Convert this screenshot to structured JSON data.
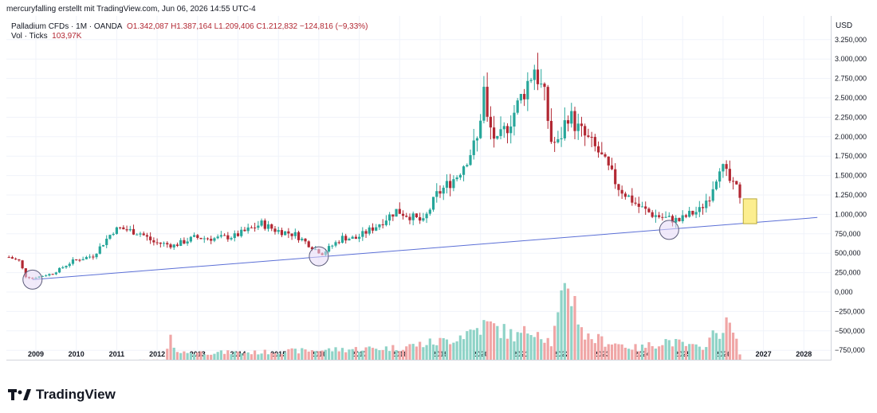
{
  "header": {
    "attribution": "mercuryfalling erstellt mit TradingView.com, Jun 06, 2026 14:55 UTC-4"
  },
  "legend": {
    "symbol": "Palladium CFDs · 1M · OANDA",
    "ohlc": "O1.342,087  H1.387,164  L1.209,406  C1.212,832  −124,816 (−9,33%)",
    "volume_label": "Vol · Ticks",
    "volume_value": "103,97K"
  },
  "currency": "USD",
  "brand": "TradingView",
  "colors": {
    "up": "#26a69a",
    "down": "#b22833",
    "vol_up": "#8fd3c7",
    "vol_down": "#f0a6a6",
    "trendline": "#5b6fd6",
    "circle_fill": "#e6d9f5",
    "circle_stroke": "#5c5c7a",
    "box_fill": "#fcee8f",
    "box_stroke": "#b9a93a"
  },
  "chart_data": {
    "type": "candlestick",
    "interval": "monthly",
    "x_start": "2008-05",
    "y_ticks": [
      3250000,
      3000000,
      2750000,
      2500000,
      2250000,
      2000000,
      1750000,
      1500000,
      1250000,
      1000000,
      750000,
      500000,
      250000,
      0,
      -250000,
      -500000,
      -750000
    ],
    "y_tick_labels": [
      "3.250,000",
      "3.000,000",
      "2.750,000",
      "2.500,000",
      "2.250,000",
      "2.000,000",
      "1.750,000",
      "1.500,000",
      "1.250,000",
      "1.000,000",
      "750,000",
      "500,000",
      "250,000",
      "0,000",
      "−250,000",
      "−500,000",
      "−750,000"
    ],
    "x_ticks": [
      "2009",
      "2010",
      "2011",
      "2012",
      "2013",
      "2014",
      "2015",
      "2016",
      "2017",
      "2018",
      "2019",
      "2020",
      "2021",
      "2022",
      "2023",
      "2024",
      "2025",
      "2026",
      "2027",
      "2028"
    ],
    "close_anchors": [
      [
        "2008-05",
        450000
      ],
      [
        "2008-08",
        400000
      ],
      [
        "2008-10",
        200000
      ],
      [
        "2008-12",
        180000
      ],
      [
        "2009-06",
        240000
      ],
      [
        "2009-12",
        400000
      ],
      [
        "2010-06",
        470000
      ],
      [
        "2010-12",
        790000
      ],
      [
        "2011-02",
        820000
      ],
      [
        "2011-08",
        760000
      ],
      [
        "2011-12",
        640000
      ],
      [
        "2012-06",
        600000
      ],
      [
        "2012-12",
        700000
      ],
      [
        "2013-06",
        690000
      ],
      [
        "2013-12",
        720000
      ],
      [
        "2014-03",
        780000
      ],
      [
        "2014-08",
        880000
      ],
      [
        "2014-12",
        800000
      ],
      [
        "2015-06",
        740000
      ],
      [
        "2015-12",
        550000
      ],
      [
        "2016-02",
        500000
      ],
      [
        "2016-08",
        700000
      ],
      [
        "2016-12",
        690000
      ],
      [
        "2017-06",
        850000
      ],
      [
        "2017-12",
        1050000
      ],
      [
        "2018-04",
        980000
      ],
      [
        "2018-08",
        900000
      ],
      [
        "2018-12",
        1250000
      ],
      [
        "2019-06",
        1500000
      ],
      [
        "2019-12",
        1950000
      ],
      [
        "2020-02",
        2600000
      ],
      [
        "2020-03",
        2200000
      ],
      [
        "2020-06",
        1900000
      ],
      [
        "2020-12",
        2400000
      ],
      [
        "2021-03",
        2700000
      ],
      [
        "2021-05",
        2900000
      ],
      [
        "2021-08",
        2500000
      ],
      [
        "2021-10",
        1950000
      ],
      [
        "2021-12",
        1900000
      ],
      [
        "2022-03",
        2300000
      ],
      [
        "2022-06",
        2100000
      ],
      [
        "2022-12",
        1800000
      ],
      [
        "2023-06",
        1350000
      ],
      [
        "2023-12",
        1100000
      ],
      [
        "2024-04",
        1000000
      ],
      [
        "2024-08",
        950000
      ],
      [
        "2024-12",
        920000
      ],
      [
        "2025-03",
        1000000
      ],
      [
        "2025-06",
        1050000
      ],
      [
        "2025-09",
        1250000
      ],
      [
        "2025-11",
        1500000
      ],
      [
        "2025-12",
        1650000
      ],
      [
        "2026-02",
        1500000
      ],
      [
        "2026-04",
        1350000
      ],
      [
        "2026-05",
        1330000
      ],
      [
        "2026-06",
        1212832
      ]
    ],
    "volume_anchors": [
      [
        "2008-05",
        5000
      ],
      [
        "2012-03",
        10000
      ],
      [
        "2012-05",
        250000
      ],
      [
        "2012-08",
        100000
      ],
      [
        "2014-06",
        100000
      ],
      [
        "2016-01",
        130000
      ],
      [
        "2017-12",
        160000
      ],
      [
        "2019-03",
        250000
      ],
      [
        "2020-03",
        450000
      ],
      [
        "2020-12",
        300000
      ],
      [
        "2021-05",
        420000
      ],
      [
        "2021-10",
        220000
      ],
      [
        "2022-03",
        1000000
      ],
      [
        "2022-08",
        300000
      ],
      [
        "2023-12",
        150000
      ],
      [
        "2024-08",
        250000
      ],
      [
        "2025-06",
        150000
      ],
      [
        "2026-01",
        420000
      ],
      [
        "2026-03",
        450000
      ],
      [
        "2026-06",
        100000
      ]
    ],
    "trendline": [
      [
        "2008-12",
        160000
      ],
      [
        "2028-05",
        960000
      ]
    ],
    "circled_lows": [
      [
        "2008-12",
        160000
      ],
      [
        "2016-01",
        460000
      ],
      [
        "2024-09",
        800000
      ]
    ],
    "projection_box": {
      "x_start": "2026-07",
      "x_end": "2026-11",
      "y_low": 880000,
      "y_high": 1200000
    }
  }
}
